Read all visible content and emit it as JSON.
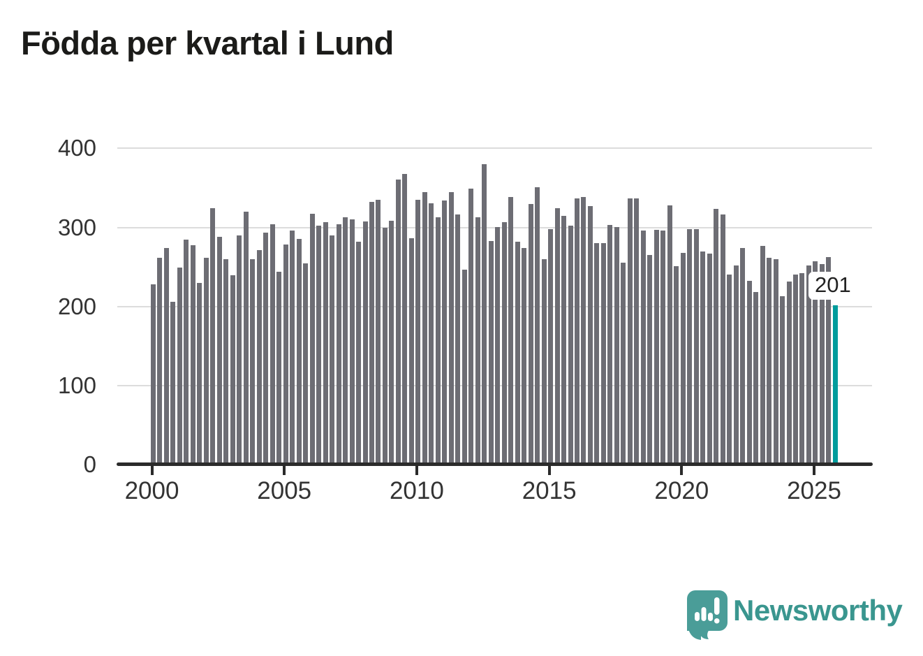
{
  "title": "Födda per kvartal i Lund",
  "chart_data": {
    "type": "bar",
    "title": "Födda per kvartal i Lund",
    "ylim": [
      0,
      400
    ],
    "grid": true,
    "y_tick_labels": [
      "400",
      "300",
      "200",
      "100",
      "0"
    ],
    "x_tick_labels": [
      "2000",
      "2005",
      "2010",
      "2015",
      "2020",
      "2025"
    ],
    "x_tick_positions": [
      0,
      20,
      40,
      60,
      80,
      100
    ],
    "bar_color": "#6d6d74",
    "x": [
      "2000 Q1",
      "2000 Q2",
      "2000 Q3",
      "2000 Q4",
      "2001 Q1",
      "2001 Q2",
      "2001 Q3",
      "2001 Q4",
      "2002 Q1",
      "2002 Q2",
      "2002 Q3",
      "2002 Q4",
      "2003 Q1",
      "2003 Q2",
      "2003 Q3",
      "2003 Q4",
      "2004 Q1",
      "2004 Q2",
      "2004 Q3",
      "2004 Q4",
      "2005 Q1",
      "2005 Q2",
      "2005 Q3",
      "2005 Q4",
      "2006 Q1",
      "2006 Q2",
      "2006 Q3",
      "2006 Q4",
      "2007 Q1",
      "2007 Q2",
      "2007 Q3",
      "2007 Q4",
      "2008 Q1",
      "2008 Q2",
      "2008 Q3",
      "2008 Q4",
      "2009 Q1",
      "2009 Q2",
      "2009 Q3",
      "2009 Q4",
      "2010 Q1",
      "2010 Q2",
      "2010 Q3",
      "2010 Q4",
      "2011 Q1",
      "2011 Q2",
      "2011 Q3",
      "2011 Q4",
      "2012 Q1",
      "2012 Q2",
      "2012 Q3",
      "2012 Q4",
      "2013 Q1",
      "2013 Q2",
      "2013 Q3",
      "2013 Q4",
      "2014 Q1",
      "2014 Q2",
      "2014 Q3",
      "2014 Q4",
      "2015 Q1",
      "2015 Q2",
      "2015 Q3",
      "2015 Q4",
      "2016 Q1",
      "2016 Q2",
      "2016 Q3",
      "2016 Q4",
      "2017 Q1",
      "2017 Q2",
      "2017 Q3",
      "2017 Q4",
      "2018 Q1",
      "2018 Q2",
      "2018 Q3",
      "2018 Q4",
      "2019 Q1",
      "2019 Q2",
      "2019 Q3",
      "2019 Q4",
      "2020 Q1",
      "2020 Q2",
      "2020 Q3",
      "2020 Q4",
      "2021 Q1",
      "2021 Q2",
      "2021 Q3",
      "2021 Q4",
      "2022 Q1",
      "2022 Q2",
      "2022 Q3",
      "2022 Q4",
      "2023 Q1",
      "2023 Q2",
      "2023 Q3",
      "2023 Q4",
      "2024 Q1",
      "2024 Q2",
      "2024 Q3",
      "2024 Q4",
      "2025 Q1",
      "2025 Q2",
      "2025 Q3",
      "2025 Q4"
    ],
    "values": [
      228,
      261,
      274,
      206,
      249,
      284,
      277,
      230,
      261,
      324,
      288,
      260,
      239,
      290,
      320,
      260,
      271,
      293,
      304,
      244,
      278,
      296,
      285,
      254,
      317,
      302,
      306,
      290,
      304,
      313,
      310,
      282,
      307,
      332,
      335,
      299,
      308,
      360,
      367,
      286,
      335,
      344,
      330,
      313,
      334,
      344,
      316,
      246,
      349,
      313,
      380,
      283,
      300,
      306,
      338,
      282,
      274,
      329,
      351,
      260,
      298,
      324,
      314,
      302,
      336,
      338,
      327,
      280,
      280,
      303,
      300,
      255,
      336,
      336,
      296,
      265,
      297,
      296,
      328,
      251,
      268,
      298,
      298,
      269,
      267,
      323,
      316,
      240,
      252,
      274,
      232,
      218,
      276,
      261,
      260,
      213,
      231,
      240,
      242,
      252,
      257,
      253,
      262,
      201
    ],
    "highlight": {
      "index": 103,
      "label": "201",
      "color": "#009c9c"
    }
  },
  "branding": {
    "name": "Newsworthy",
    "icon": "newsworthy-logo-icon",
    "icon_color": "#4a9d98",
    "text_color": "#3a968f"
  }
}
